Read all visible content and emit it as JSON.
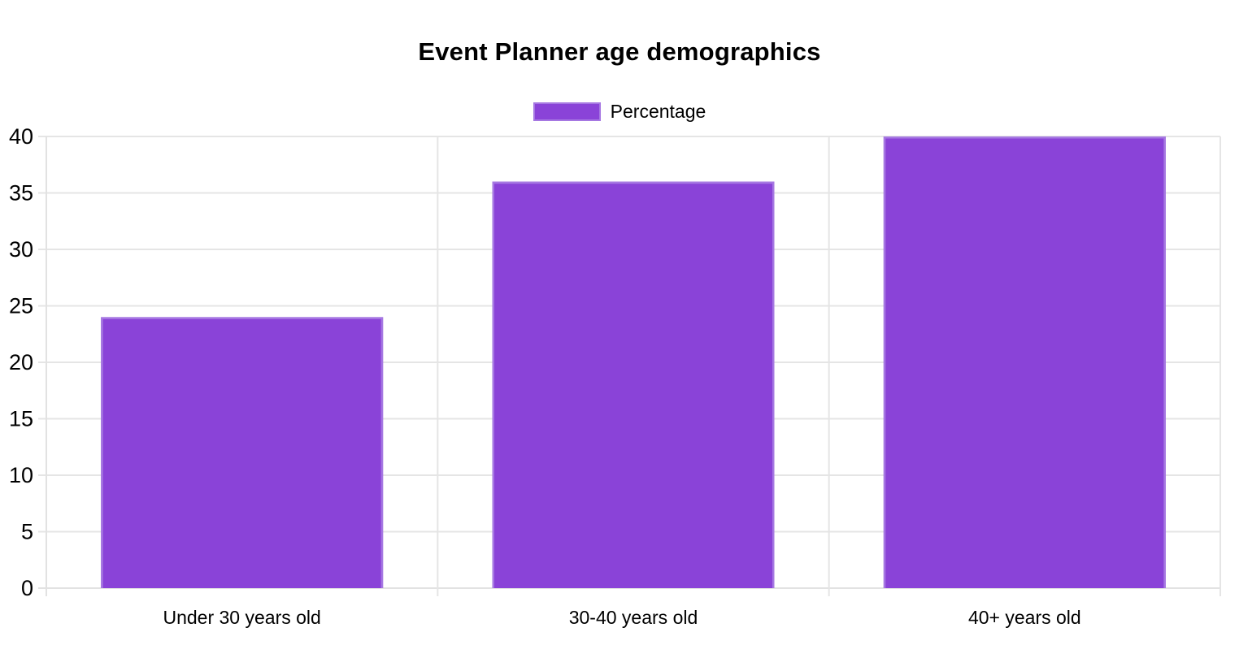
{
  "page": {
    "background": "#ffffff"
  },
  "chart_data": {
    "type": "bar",
    "title": "Event Planner age demographics",
    "legend": [
      {
        "label": "Percentage",
        "color": "#8a43d8"
      }
    ],
    "legend_position": "top",
    "categories": [
      "Under 30 years old",
      "30-40 years old",
      "40+ years old"
    ],
    "series": [
      {
        "name": "Percentage",
        "values": [
          24,
          36,
          40
        ]
      }
    ],
    "xlabel": "",
    "ylabel": "",
    "ylim": [
      0,
      40
    ],
    "ytick_step": 5,
    "ytick_labels": [
      "0",
      "5",
      "10",
      "15",
      "20",
      "25",
      "30",
      "35",
      "40"
    ],
    "grid": "on"
  },
  "colors": {
    "bar_fill": "#8a43d8",
    "bar_border": "#a678e2",
    "grid_line": "#e5e5e5",
    "axis_line": "#e2e2e2",
    "tick_text": "#000000",
    "title_text": "#000000"
  }
}
